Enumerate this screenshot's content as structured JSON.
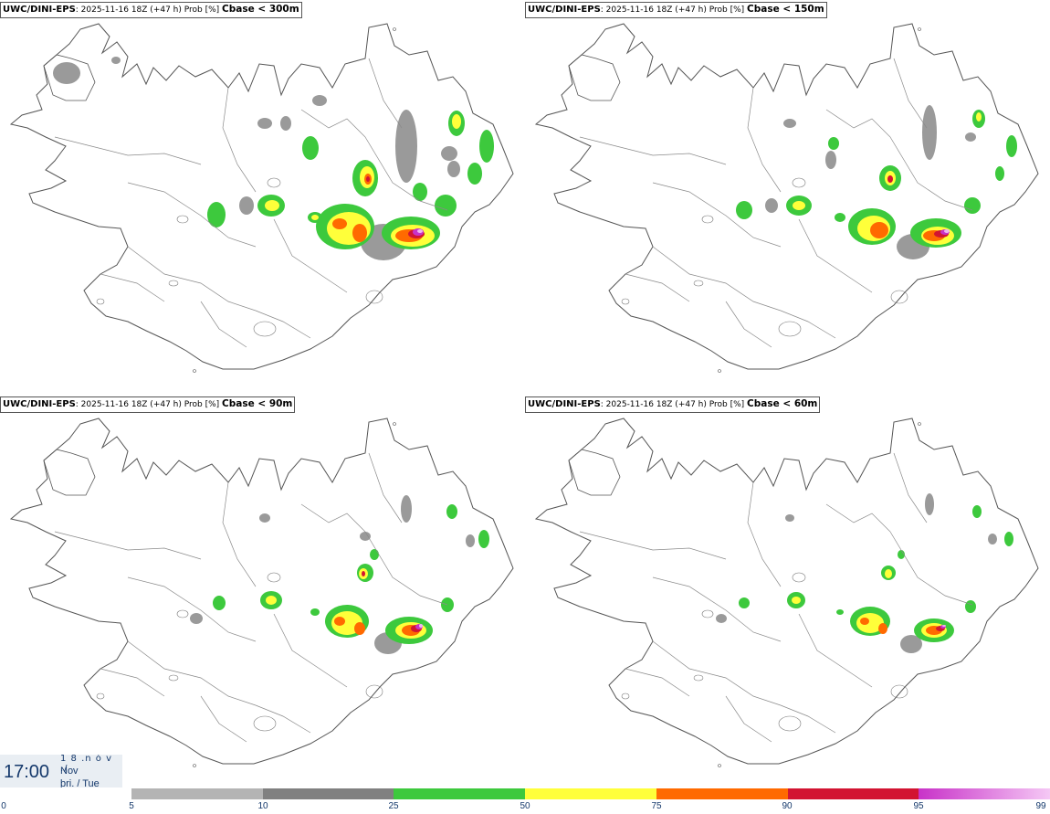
{
  "panels": [
    {
      "model": "UWC/DINI-EPS",
      "info": ": 2025-11-16 18Z (+47 h) Prob [%] ",
      "threshold": "Cbase < 300m"
    },
    {
      "model": "UWC/DINI-EPS",
      "info": ": 2025-11-16 18Z (+47 h) Prob [%] ",
      "threshold": "Cbase < 150m"
    },
    {
      "model": "UWC/DINI-EPS",
      "info": ": 2025-11-16 18Z (+47 h) Prob [%] ",
      "threshold": "Cbase < 90m"
    },
    {
      "model": "UWC/DINI-EPS",
      "info": ": 2025-11-16 18Z (+47 h) Prob [%] ",
      "threshold": "Cbase < 60m"
    }
  ],
  "time_box": {
    "clock": "17:00",
    "date_glyph": "1 8 .n ó v ./",
    "month": "Nov",
    "weekday": "þri. / Tue"
  },
  "colorbar": {
    "ticks": [
      "0",
      "5",
      "10",
      "25",
      "50",
      "75",
      "90",
      "95",
      "99"
    ],
    "colors": [
      "#b4b4b4",
      "#808080",
      "#3dc93d",
      "#ffff3a",
      "#ff6a00",
      "#d21432",
      "#c832c8"
    ],
    "last_color_end": "#f5c8f5"
  },
  "map": {
    "region": "Iceland",
    "coast_color": "#555555",
    "field_colors": {
      "gray": "#9a9a9a",
      "green": "#3dc93d",
      "yellow": "#ffff3a",
      "orange": "#ff6a00",
      "red": "#d21432",
      "magenta": "#c832c8",
      "pink": "#f0b4f0"
    }
  }
}
